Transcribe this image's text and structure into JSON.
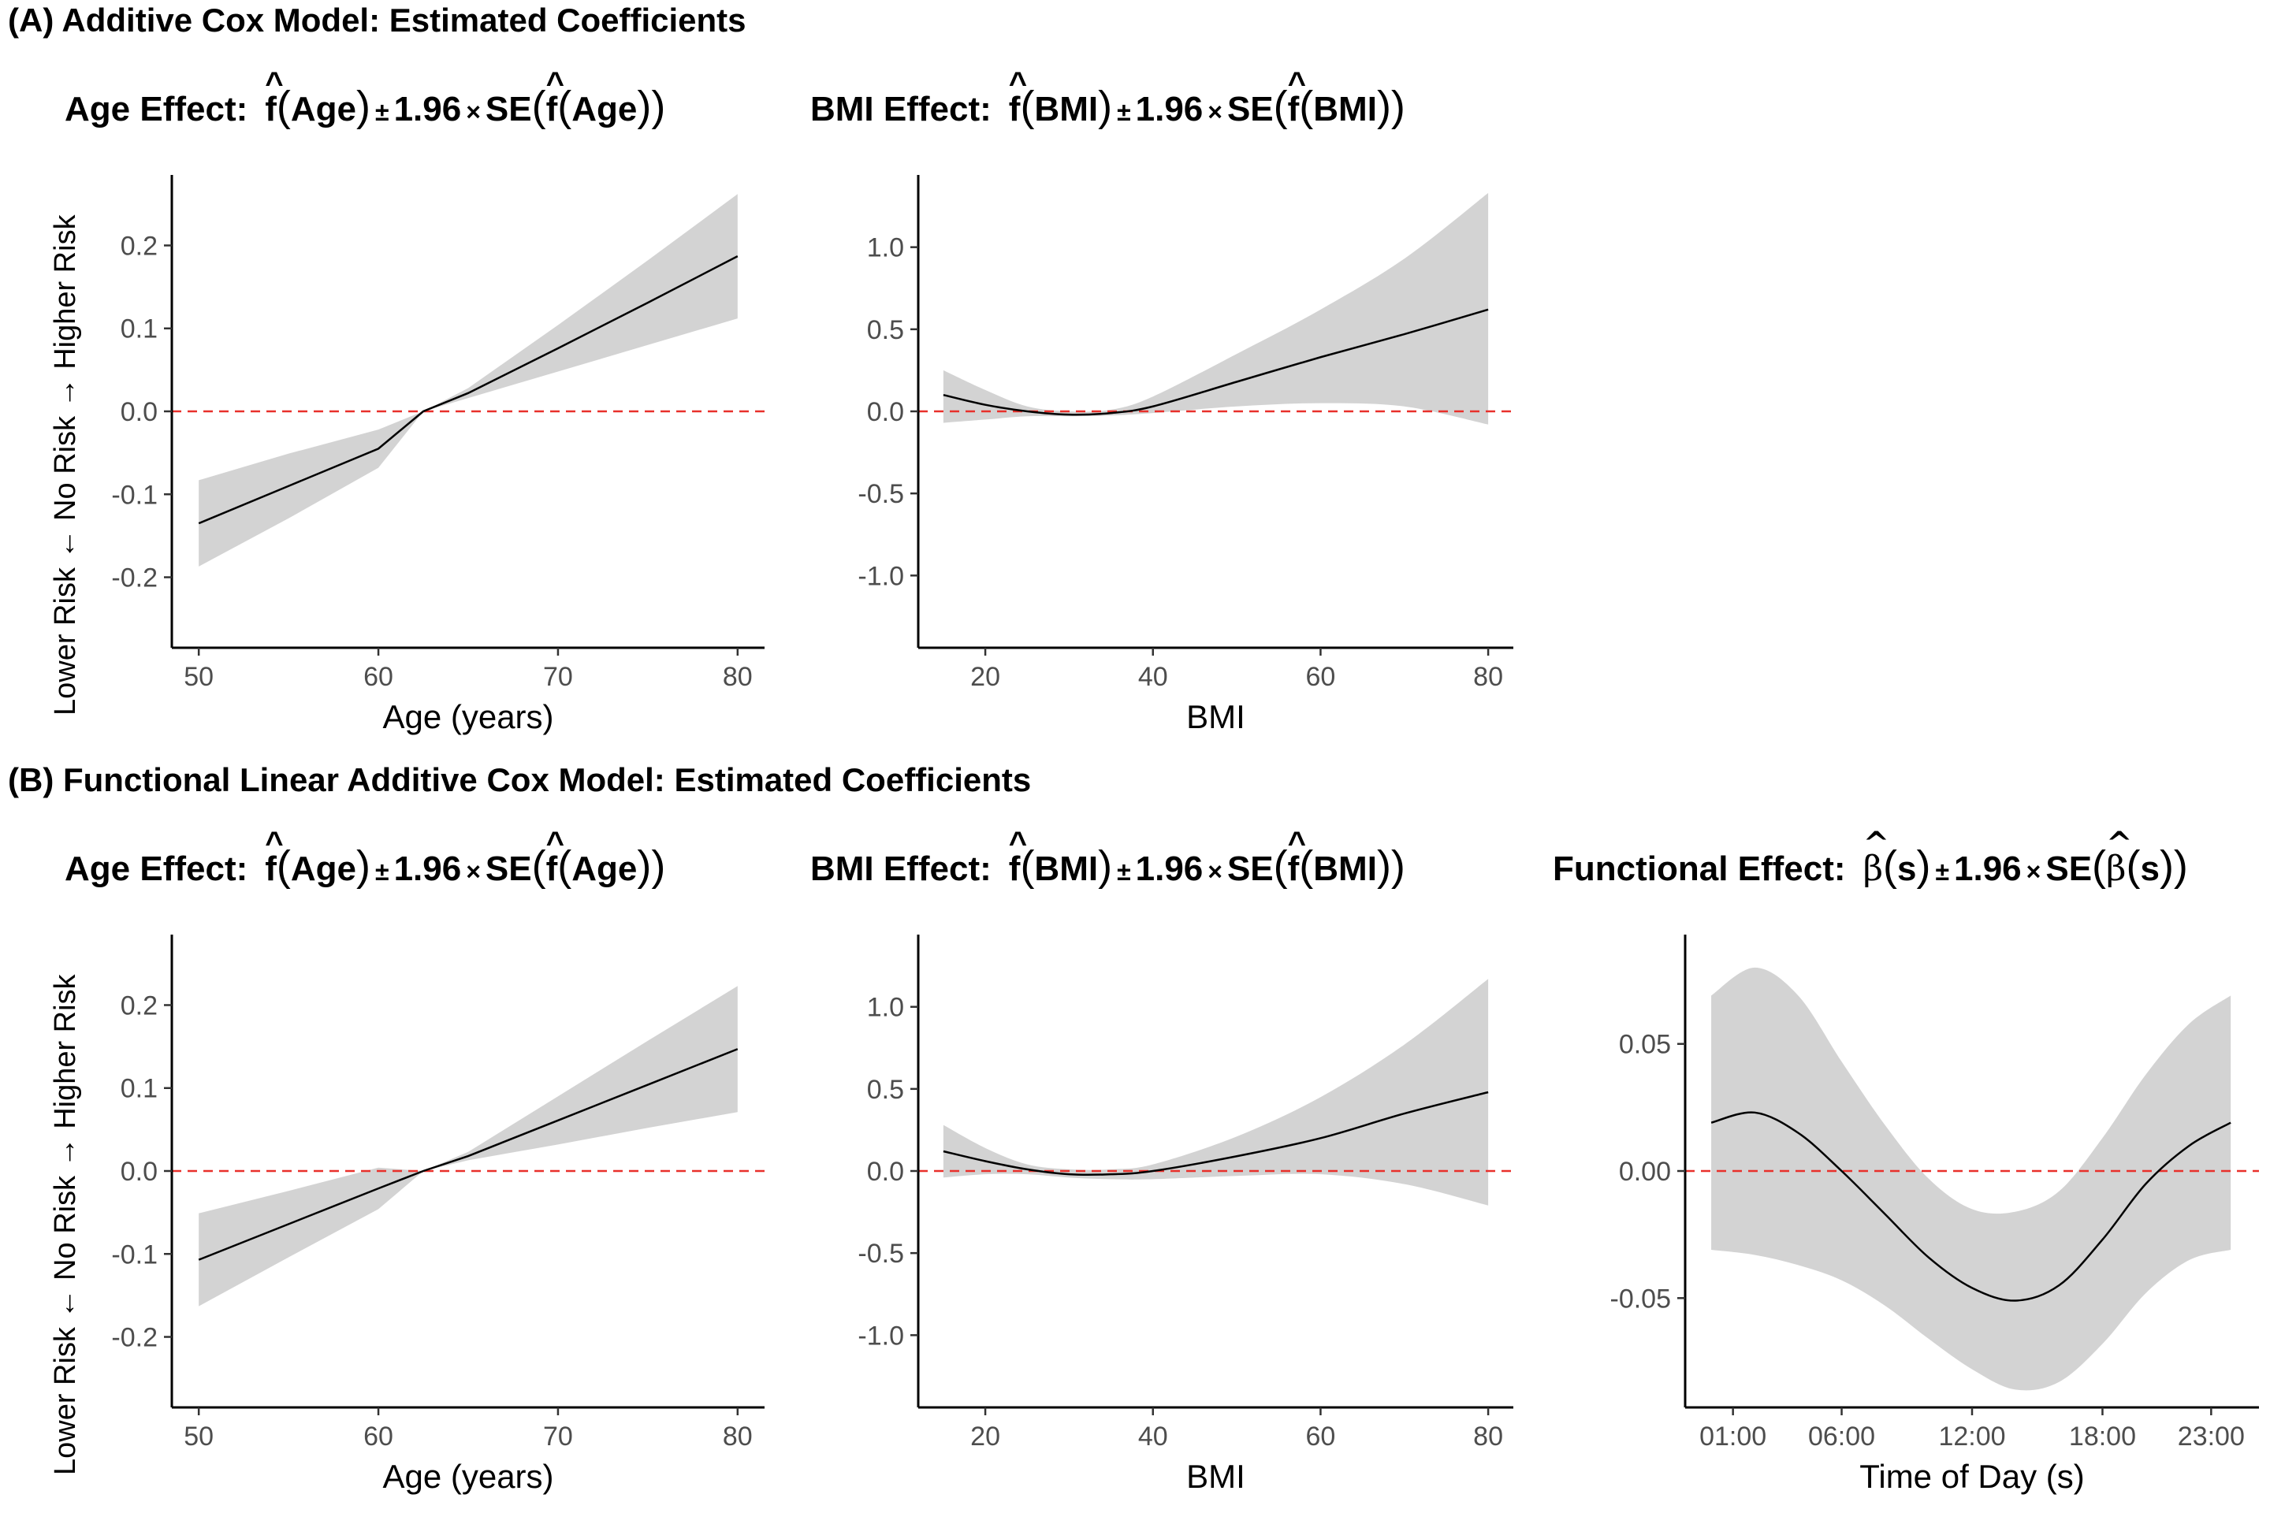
{
  "section_a_title": "(A) Additive Cox Model: Estimated Coefficients",
  "section_b_title": "(B) Functional Linear Additive Cox Model: Estimated Coefficients",
  "titles": {
    "age_label": "Age Effect:",
    "age_arg": "Age",
    "bmi_label": "BMI Effect:",
    "bmi_arg": "BMI",
    "func_label": "Functional Effect:",
    "func_arg": "s",
    "f": "f",
    "beta": "β",
    "pm": "±",
    "times": "×",
    "z": "1.96",
    "se": "SE"
  },
  "ylabel_a": "Lower Risk ← No Risk → Higher Risk",
  "ylabel_b": "Lower Risk ← No Risk → Higher Risk",
  "colors": {
    "ribbon": "#d3d3d3",
    "line": "#000000",
    "reference": "#e8302b"
  },
  "chart_data": [
    {
      "id": "a-age",
      "type": "line",
      "series": [
        {
          "name": "",
          "shape": "linear"
        }
      ],
      "x": [
        50,
        55,
        60,
        62.5,
        65,
        70,
        75,
        80
      ],
      "y": [
        -0.135,
        -0.09,
        -0.045,
        0.0,
        0.022,
        0.076,
        0.131,
        0.187
      ],
      "ci_lower": [
        -0.187,
        -0.129,
        -0.068,
        0.0,
        0.016,
        0.048,
        0.08,
        0.112
      ],
      "ci_upper": [
        -0.083,
        -0.051,
        -0.022,
        0.0,
        0.028,
        0.104,
        0.182,
        0.262
      ],
      "xlim": [
        48.5,
        81.5
      ],
      "ylim": [
        -0.285,
        0.285
      ],
      "xticks": [
        50,
        60,
        70,
        80
      ],
      "xtick_labels": [
        "50",
        "60",
        "70",
        "80"
      ],
      "yticks": [
        0.2,
        0.1,
        0.0,
        -0.1,
        -0.2
      ],
      "ytick_labels": [
        "0.2",
        "0.1",
        "0.0",
        "-0.1",
        "-0.2"
      ],
      "xlabel": "Age (years)",
      "reference_line": 0
    },
    {
      "id": "a-bmi",
      "type": "line",
      "series": [
        {
          "name": "",
          "shape": "smooth"
        }
      ],
      "x": [
        15,
        20,
        25,
        30,
        35,
        40,
        50,
        60,
        70,
        80
      ],
      "y": [
        0.1,
        0.04,
        0.0,
        -0.02,
        -0.01,
        0.03,
        0.18,
        0.33,
        0.47,
        0.62
      ],
      "ci_lower": [
        -0.07,
        -0.05,
        -0.03,
        -0.03,
        -0.025,
        -0.01,
        0.03,
        0.05,
        0.03,
        -0.08
      ],
      "ci_upper": [
        0.25,
        0.13,
        0.03,
        0.0,
        0.01,
        0.09,
        0.35,
        0.62,
        0.93,
        1.33
      ],
      "xlim": [
        12,
        83
      ],
      "ylim": [
        -1.44,
        1.44
      ],
      "xticks": [
        20,
        40,
        60,
        80
      ],
      "xtick_labels": [
        "20",
        "40",
        "60",
        "80"
      ],
      "yticks": [
        1.0,
        0.5,
        0.0,
        -0.5,
        -1.0
      ],
      "ytick_labels": [
        "1.0",
        "0.5",
        "0.0",
        "-0.5",
        "-1.0"
      ],
      "xlabel": "BMI",
      "reference_line": 0
    },
    {
      "id": "b-age",
      "type": "line",
      "series": [
        {
          "name": "",
          "shape": "linear"
        }
      ],
      "x": [
        50,
        55,
        60,
        62.5,
        65,
        70,
        75,
        80
      ],
      "y": [
        -0.107,
        -0.064,
        -0.021,
        0.0,
        0.018,
        0.061,
        0.104,
        0.147
      ],
      "ci_lower": [
        -0.163,
        -0.104,
        -0.046,
        0.0,
        0.013,
        0.032,
        0.052,
        0.071
      ],
      "ci_upper": [
        -0.051,
        -0.024,
        0.004,
        0.0,
        0.023,
        0.09,
        0.157,
        0.223
      ],
      "xlim": [
        48.5,
        81.5
      ],
      "ylim": [
        -0.285,
        0.285
      ],
      "xticks": [
        50,
        60,
        70,
        80
      ],
      "xtick_labels": [
        "50",
        "60",
        "70",
        "80"
      ],
      "yticks": [
        0.2,
        0.1,
        0.0,
        -0.1,
        -0.2
      ],
      "ytick_labels": [
        "0.2",
        "0.1",
        "0.0",
        "-0.1",
        "-0.2"
      ],
      "xlabel": "Age (years)",
      "reference_line": 0
    },
    {
      "id": "b-bmi",
      "type": "line",
      "series": [
        {
          "name": "",
          "shape": "smooth"
        }
      ],
      "x": [
        15,
        20,
        25,
        30,
        35,
        40,
        50,
        60,
        70,
        80
      ],
      "y": [
        0.12,
        0.06,
        0.01,
        -0.02,
        -0.02,
        0.0,
        0.09,
        0.2,
        0.35,
        0.48
      ],
      "ci_lower": [
        -0.04,
        -0.02,
        -0.02,
        -0.04,
        -0.05,
        -0.05,
        -0.03,
        -0.02,
        -0.08,
        -0.21
      ],
      "ci_upper": [
        0.28,
        0.14,
        0.04,
        0.01,
        0.01,
        0.04,
        0.21,
        0.45,
        0.77,
        1.17
      ],
      "xlim": [
        12,
        83
      ],
      "ylim": [
        -1.44,
        1.44
      ],
      "xticks": [
        20,
        40,
        60,
        80
      ],
      "xtick_labels": [
        "20",
        "40",
        "60",
        "80"
      ],
      "yticks": [
        1.0,
        0.5,
        0.0,
        -0.5,
        -1.0
      ],
      "ytick_labels": [
        "1.0",
        "0.5",
        "0.0",
        "-0.5",
        "-1.0"
      ],
      "xlabel": "BMI",
      "reference_line": 0
    },
    {
      "id": "b-func",
      "type": "line",
      "series": [
        {
          "name": "",
          "shape": "smooth"
        }
      ],
      "x": [
        0,
        2,
        4,
        6,
        8,
        10,
        12,
        14,
        16,
        18,
        20,
        22,
        23.9
      ],
      "y": [
        0.019,
        0.023,
        0.015,
        0.0,
        -0.017,
        -0.034,
        -0.046,
        -0.051,
        -0.045,
        -0.027,
        -0.005,
        0.01,
        0.019
      ],
      "ci_lower": [
        -0.031,
        -0.033,
        -0.037,
        -0.043,
        -0.053,
        -0.066,
        -0.078,
        -0.086,
        -0.083,
        -0.068,
        -0.048,
        -0.035,
        -0.031
      ],
      "ci_upper": [
        0.069,
        0.08,
        0.069,
        0.043,
        0.018,
        -0.003,
        -0.015,
        -0.016,
        -0.008,
        0.013,
        0.038,
        0.058,
        0.069
      ],
      "xlim": [
        -1.2,
        25.2
      ],
      "ylim": [
        -0.093,
        0.093
      ],
      "xticks": [
        1,
        6,
        12,
        18,
        23
      ],
      "xtick_labels": [
        "01:00",
        "06:00",
        "12:00",
        "18:00",
        "23:00"
      ],
      "yticks": [
        0.05,
        0.0,
        -0.05
      ],
      "ytick_labels": [
        "0.05",
        "0.00",
        "-0.05"
      ],
      "xlabel": "Time of Day (s)",
      "reference_line": 0
    }
  ]
}
